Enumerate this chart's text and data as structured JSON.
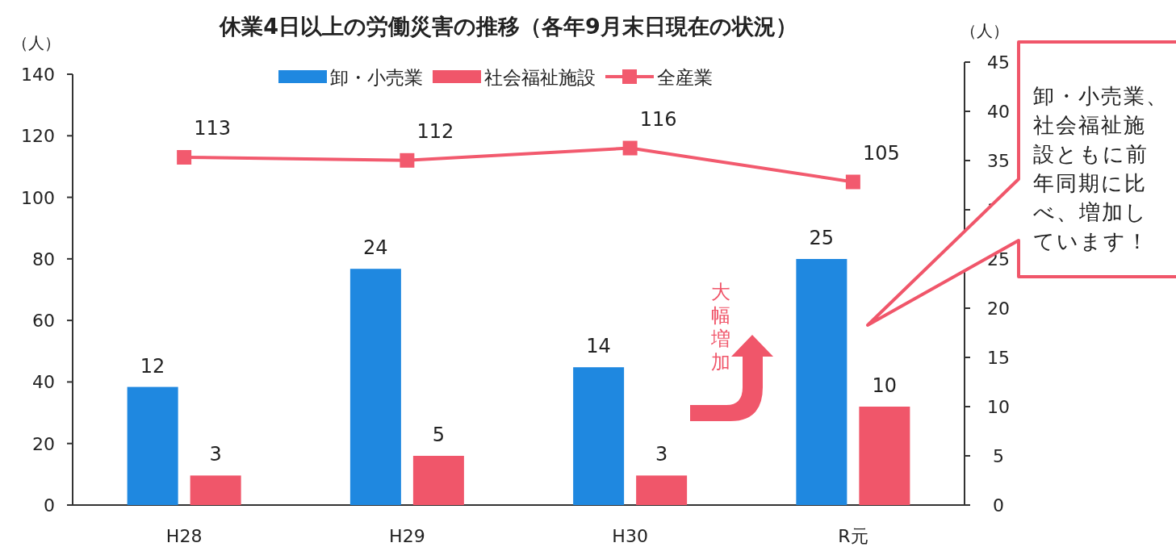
{
  "chart_data": {
    "type": "bar",
    "title": "休業4日以上の労働災害の推移（各年9月末日現在の状況）",
    "categories": [
      "H28",
      "H29",
      "H30",
      "R元"
    ],
    "series": [
      {
        "name": "卸・小売業",
        "color": "#1f88e0",
        "values": [
          12,
          24,
          14,
          25
        ],
        "axis": "y2"
      },
      {
        "name": "社会福祉施設",
        "color": "#f0566a",
        "values": [
          3,
          5,
          3,
          10
        ],
        "axis": "y2"
      },
      {
        "name": "全産業",
        "type": "line",
        "color": "#f25a6e",
        "values": [
          113,
          112,
          116,
          105
        ],
        "axis": "y",
        "marker": "square"
      }
    ],
    "ylabel": "（人）",
    "y2label": "（人）",
    "ylim": [
      0,
      140
    ],
    "yticks": [
      0,
      20,
      40,
      60,
      80,
      100,
      120,
      140
    ],
    "y2lim": [
      0,
      45
    ],
    "y2ticks": [
      0,
      5,
      10,
      15,
      20,
      25,
      30,
      35,
      40,
      45
    ],
    "data_labels": true,
    "legend": "top",
    "grid": false,
    "annotations": [
      "大幅増加",
      "卸・小売業、社会福祉施設ともに前年同期に比べ、増加しています！"
    ]
  }
}
